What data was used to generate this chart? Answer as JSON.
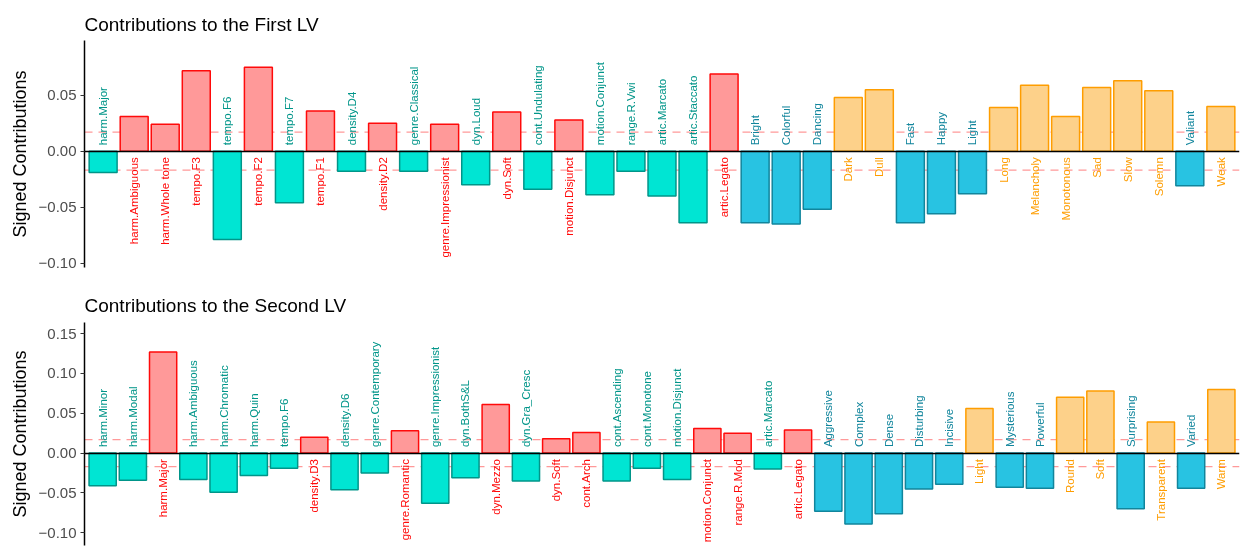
{
  "chart_data": [
    {
      "type": "bar",
      "title": "Contributions to the First LV",
      "ylabel": "Signed Contributions",
      "categories": [
        "harm.Major",
        "harm.Ambiguous",
        "harm.Whole tone",
        "tempo.F3",
        "tempo.F6",
        "tempo.F2",
        "tempo.F7",
        "tempo.F1",
        "density.D4",
        "density.D2",
        "genre.Classical",
        "genre.Impressionist",
        "dyn.Loud",
        "dyn.Soft",
        "cont.Undulating",
        "motion.Disjunct",
        "motion.Conjunct",
        "range.R.Vwi",
        "artic.Marcato",
        "artic.Staccato",
        "artic.Legato",
        "Bright",
        "Colorful",
        "Dancing",
        "Dark",
        "Dull",
        "Fast",
        "Happy",
        "Light",
        "Long",
        "Melancholy",
        "Monotonous",
        "Sad",
        "Slow",
        "Solemn",
        "Valiant",
        "Weak"
      ],
      "values": [
        -0.019,
        0.031,
        0.024,
        0.072,
        -0.079,
        0.075,
        -0.046,
        0.036,
        -0.018,
        0.025,
        -0.018,
        0.024,
        -0.03,
        0.035,
        -0.034,
        0.028,
        -0.039,
        -0.018,
        -0.04,
        -0.064,
        0.069,
        -0.064,
        -0.065,
        -0.052,
        0.048,
        0.055,
        -0.064,
        -0.056,
        -0.038,
        0.039,
        0.059,
        0.031,
        0.057,
        0.063,
        0.054,
        -0.031,
        0.04
      ],
      "colors": [
        "#00e5d3",
        "#ff9999",
        "#ff9999",
        "#ff9999",
        "#00e5d3",
        "#ff9999",
        "#00e5d3",
        "#ff9999",
        "#00e5d3",
        "#ff9999",
        "#00e5d3",
        "#ff9999",
        "#00e5d3",
        "#ff9999",
        "#00e5d3",
        "#ff9999",
        "#00e5d3",
        "#00e5d3",
        "#00e5d3",
        "#00e5d3",
        "#ff9999",
        "#28c3e2",
        "#28c3e2",
        "#28c3e2",
        "#fdd18a",
        "#fdd18a",
        "#28c3e2",
        "#28c3e2",
        "#28c3e2",
        "#fdd18a",
        "#fdd18a",
        "#fdd18a",
        "#fdd18a",
        "#fdd18a",
        "#fdd18a",
        "#28c3e2",
        "#fdd18a"
      ],
      "ylim": [
        -0.104,
        0.099
      ],
      "yticks": [
        {
          "value": -0.1,
          "label": "−0.10"
        },
        {
          "value": -0.05,
          "label": "−0.05"
        },
        {
          "value": 0,
          "label": "0.00"
        },
        {
          "value": 0.05,
          "label": "0.05"
        }
      ],
      "ref_lines": [
        {
          "axis": "y",
          "value": 0.017,
          "color": "#ff9999",
          "line_style": "dashed"
        },
        {
          "axis": "y",
          "value": -0.017,
          "color": "#ff9999",
          "line_style": "dashed"
        }
      ]
    },
    {
      "type": "bar",
      "title": "Contributions to the Second LV",
      "ylabel": "Signed Contributions",
      "categories": [
        "harm.Minor",
        "harm.Modal",
        "harm.Major",
        "harm.Ambiguous",
        "harm.Chromatic",
        "harm.Quin",
        "tempo.F6",
        "density.D3",
        "density.D6",
        "genre.Contemporary",
        "genre.Romantic",
        "genre.Impressionist",
        "dyn.BothS&L",
        "dyn.Mezzo",
        "dyn.Gra_Cresc",
        "dyn.Soft",
        "cont.Arch",
        "cont.Ascending",
        "cont.Monotone",
        "motion.Disjunct",
        "motion.Conjunct",
        "range.R.Mod",
        "artic.Marcato",
        "artic.Legato",
        "Aggressive",
        "Complex",
        "Dense",
        "Disturbing",
        "Incisive",
        "Light",
        "Mysterious",
        "Powerful",
        "Round",
        "Soft",
        "Surprising",
        "Transparent",
        "Varied",
        "Warm"
      ],
      "values": [
        -0.041,
        -0.034,
        0.127,
        -0.033,
        -0.049,
        -0.028,
        -0.019,
        0.02,
        -0.046,
        -0.025,
        0.028,
        -0.063,
        -0.031,
        0.061,
        -0.035,
        0.018,
        0.026,
        -0.035,
        -0.019,
        -0.033,
        0.031,
        0.025,
        -0.02,
        0.029,
        -0.073,
        -0.089,
        -0.076,
        -0.045,
        -0.039,
        0.056,
        -0.043,
        -0.044,
        0.07,
        0.078,
        -0.07,
        0.039,
        -0.044,
        0.08
      ],
      "colors": [
        "#00e5d3",
        "#00e5d3",
        "#ff9999",
        "#00e5d3",
        "#00e5d3",
        "#00e5d3",
        "#00e5d3",
        "#ff9999",
        "#00e5d3",
        "#00e5d3",
        "#ff9999",
        "#00e5d3",
        "#00e5d3",
        "#ff9999",
        "#00e5d3",
        "#ff9999",
        "#ff9999",
        "#00e5d3",
        "#00e5d3",
        "#00e5d3",
        "#ff9999",
        "#ff9999",
        "#00e5d3",
        "#ff9999",
        "#28c3e2",
        "#28c3e2",
        "#28c3e2",
        "#28c3e2",
        "#28c3e2",
        "#fdd18a",
        "#28c3e2",
        "#28c3e2",
        "#fdd18a",
        "#fdd18a",
        "#28c3e2",
        "#fdd18a",
        "#28c3e2",
        "#fdd18a"
      ],
      "ylim": [
        -0.116,
        0.164
      ],
      "yticks": [
        {
          "value": -0.1,
          "label": "−0.10"
        },
        {
          "value": -0.05,
          "label": "−0.05"
        },
        {
          "value": 0,
          "label": "0.00"
        },
        {
          "value": 0.05,
          "label": "0.05"
        },
        {
          "value": 0.1,
          "label": "0.10"
        },
        {
          "value": 0.15,
          "label": "0.15"
        }
      ],
      "ref_lines": [
        {
          "axis": "y",
          "value": 0.017,
          "color": "#ff9999",
          "line_style": "dashed"
        },
        {
          "axis": "y",
          "value": -0.017,
          "color": "#ff9999",
          "line_style": "dashed"
        }
      ]
    }
  ]
}
